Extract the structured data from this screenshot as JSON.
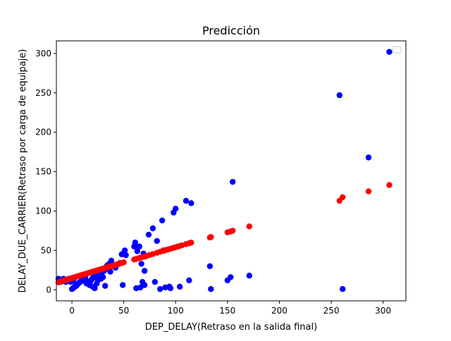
{
  "chart_data": {
    "type": "scatter",
    "title": "Predicción",
    "xlabel": "DEP_DELAY(Retraso en la salida final)",
    "ylabel": "DELAY_DUE_CARRIER(Retraso por carga de equipaje)",
    "xlim": [
      -15,
      322
    ],
    "ylim": [
      -14,
      316
    ],
    "xticks": [
      0,
      50,
      100,
      150,
      200,
      250,
      300
    ],
    "yticks": [
      0,
      50,
      100,
      150,
      200,
      250,
      300
    ],
    "grid": false,
    "legend": {
      "placement": "top-right",
      "entries": []
    },
    "series": [
      {
        "color": "#0000ff",
        "points": [
          [
            -13,
            14
          ],
          [
            -12,
            12
          ],
          [
            -11,
            10
          ],
          [
            -10,
            13
          ],
          [
            -9,
            11
          ],
          [
            -8,
            14
          ],
          [
            -7,
            12
          ],
          [
            -6,
            10
          ],
          [
            -5,
            13
          ],
          [
            -4,
            11
          ],
          [
            -3,
            14
          ],
          [
            -2,
            12
          ],
          [
            -1,
            10
          ],
          [
            0,
            13
          ],
          [
            1,
            11
          ],
          [
            2,
            14
          ],
          [
            0,
            1
          ],
          [
            1,
            2
          ],
          [
            2,
            3
          ],
          [
            3,
            4
          ],
          [
            4,
            5
          ],
          [
            5,
            6
          ],
          [
            6,
            8
          ],
          [
            7,
            9
          ],
          [
            8,
            10
          ],
          [
            9,
            11
          ],
          [
            10,
            12
          ],
          [
            11,
            13
          ],
          [
            12,
            14
          ],
          [
            13,
            15
          ],
          [
            14,
            8
          ],
          [
            15,
            9
          ],
          [
            16,
            10
          ],
          [
            17,
            6
          ],
          [
            18,
            11
          ],
          [
            19,
            13
          ],
          [
            20,
            4
          ],
          [
            20,
            15
          ],
          [
            22,
            2
          ],
          [
            22,
            17
          ],
          [
            24,
            8
          ],
          [
            25,
            12
          ],
          [
            26,
            18
          ],
          [
            27,
            20
          ],
          [
            28,
            14
          ],
          [
            29,
            22
          ],
          [
            30,
            16
          ],
          [
            31,
            24
          ],
          [
            32,
            26
          ],
          [
            32,
            5
          ],
          [
            33,
            29
          ],
          [
            34,
            31
          ],
          [
            35,
            27
          ],
          [
            36,
            33
          ],
          [
            37,
            23
          ],
          [
            38,
            37
          ],
          [
            40,
            30
          ],
          [
            42,
            28
          ],
          [
            44,
            32
          ],
          [
            46,
            34
          ],
          [
            48,
            45
          ],
          [
            49,
            6
          ],
          [
            50,
            47
          ],
          [
            51,
            50
          ],
          [
            52,
            44
          ],
          [
            60,
            55
          ],
          [
            61,
            60
          ],
          [
            62,
            2
          ],
          [
            63,
            49
          ],
          [
            65,
            55
          ],
          [
            66,
            3
          ],
          [
            67,
            33
          ],
          [
            68,
            10
          ],
          [
            69,
            46
          ],
          [
            70,
            6
          ],
          [
            70,
            24
          ],
          [
            74,
            70
          ],
          [
            78,
            78
          ],
          [
            80,
            10
          ],
          [
            82,
            62
          ],
          [
            85,
            1
          ],
          [
            87,
            88
          ],
          [
            88,
            50
          ],
          [
            90,
            3
          ],
          [
            94,
            4
          ],
          [
            95,
            2
          ],
          [
            98,
            98
          ],
          [
            100,
            103
          ],
          [
            104,
            4
          ],
          [
            110,
            113
          ],
          [
            113,
            12
          ],
          [
            115,
            110
          ],
          [
            133,
            30
          ],
          [
            134,
            1
          ],
          [
            150,
            12
          ],
          [
            153,
            16
          ],
          [
            155,
            137
          ],
          [
            171,
            18
          ],
          [
            258,
            247
          ],
          [
            261,
            1
          ],
          [
            286,
            168
          ],
          [
            306,
            302
          ]
        ]
      },
      {
        "color": "#ff0000",
        "points": [
          [
            -13,
            9.5
          ],
          [
            -12,
            10
          ],
          [
            -11,
            10.5
          ],
          [
            -10,
            11
          ],
          [
            -9,
            11.3
          ],
          [
            -8,
            11.7
          ],
          [
            -7,
            12.1
          ],
          [
            -6,
            12.5
          ],
          [
            -5,
            12.9
          ],
          [
            -4,
            13.3
          ],
          [
            -3,
            13.7
          ],
          [
            -2,
            14.1
          ],
          [
            -1,
            14.5
          ],
          [
            0,
            14.9
          ],
          [
            1,
            15.3
          ],
          [
            2,
            15.7
          ],
          [
            3,
            16.1
          ],
          [
            4,
            16.5
          ],
          [
            5,
            16.9
          ],
          [
            6,
            17.3
          ],
          [
            7,
            17.7
          ],
          [
            8,
            18.1
          ],
          [
            9,
            18.5
          ],
          [
            10,
            18.9
          ],
          [
            11,
            19.3
          ],
          [
            12,
            19.7
          ],
          [
            13,
            20.1
          ],
          [
            14,
            20.5
          ],
          [
            15,
            20.9
          ],
          [
            16,
            21.3
          ],
          [
            17,
            21.7
          ],
          [
            18,
            22.1
          ],
          [
            19,
            22.5
          ],
          [
            20,
            22.9
          ],
          [
            21,
            23.3
          ],
          [
            22,
            23.7
          ],
          [
            23,
            24.1
          ],
          [
            24,
            24.5
          ],
          [
            25,
            24.9
          ],
          [
            26,
            25.3
          ],
          [
            27,
            25.7
          ],
          [
            28,
            26.1
          ],
          [
            29,
            26.5
          ],
          [
            30,
            26.9
          ],
          [
            31,
            27.3
          ],
          [
            32,
            27.7
          ],
          [
            33,
            28.1
          ],
          [
            34,
            28.5
          ],
          [
            35,
            28.9
          ],
          [
            36,
            29.3
          ],
          [
            37,
            29.7
          ],
          [
            38,
            30.1
          ],
          [
            39,
            30.5
          ],
          [
            40,
            30.9
          ],
          [
            41,
            31.3
          ],
          [
            42,
            31.7
          ],
          [
            43,
            32.1
          ],
          [
            44,
            32.5
          ],
          [
            45,
            32.9
          ],
          [
            46,
            33.3
          ],
          [
            47,
            33.7
          ],
          [
            48,
            34.1
          ],
          [
            49,
            34.5
          ],
          [
            50,
            34.9
          ],
          [
            60,
            38.5
          ],
          [
            62,
            39.2
          ],
          [
            64,
            40
          ],
          [
            66,
            40.8
          ],
          [
            68,
            41.5
          ],
          [
            70,
            42.2
          ],
          [
            72,
            43
          ],
          [
            75,
            44.2
          ],
          [
            78,
            45.4
          ],
          [
            82,
            47
          ],
          [
            85,
            48.2
          ],
          [
            88,
            49.4
          ],
          [
            90,
            50.2
          ],
          [
            92,
            51
          ],
          [
            94,
            51.8
          ],
          [
            96,
            52.5
          ],
          [
            98,
            53.3
          ],
          [
            100,
            54.1
          ],
          [
            102,
            54.9
          ],
          [
            104,
            55.7
          ],
          [
            106,
            56.4
          ],
          [
            110,
            58
          ],
          [
            113,
            59.1
          ],
          [
            115,
            59.9
          ],
          [
            133,
            66.4
          ],
          [
            134,
            67
          ],
          [
            150,
            73
          ],
          [
            153,
            74
          ],
          [
            155,
            75
          ],
          [
            171,
            80.5
          ],
          [
            258,
            113
          ],
          [
            261,
            117.5
          ],
          [
            286,
            125
          ],
          [
            306,
            133
          ]
        ]
      }
    ]
  }
}
